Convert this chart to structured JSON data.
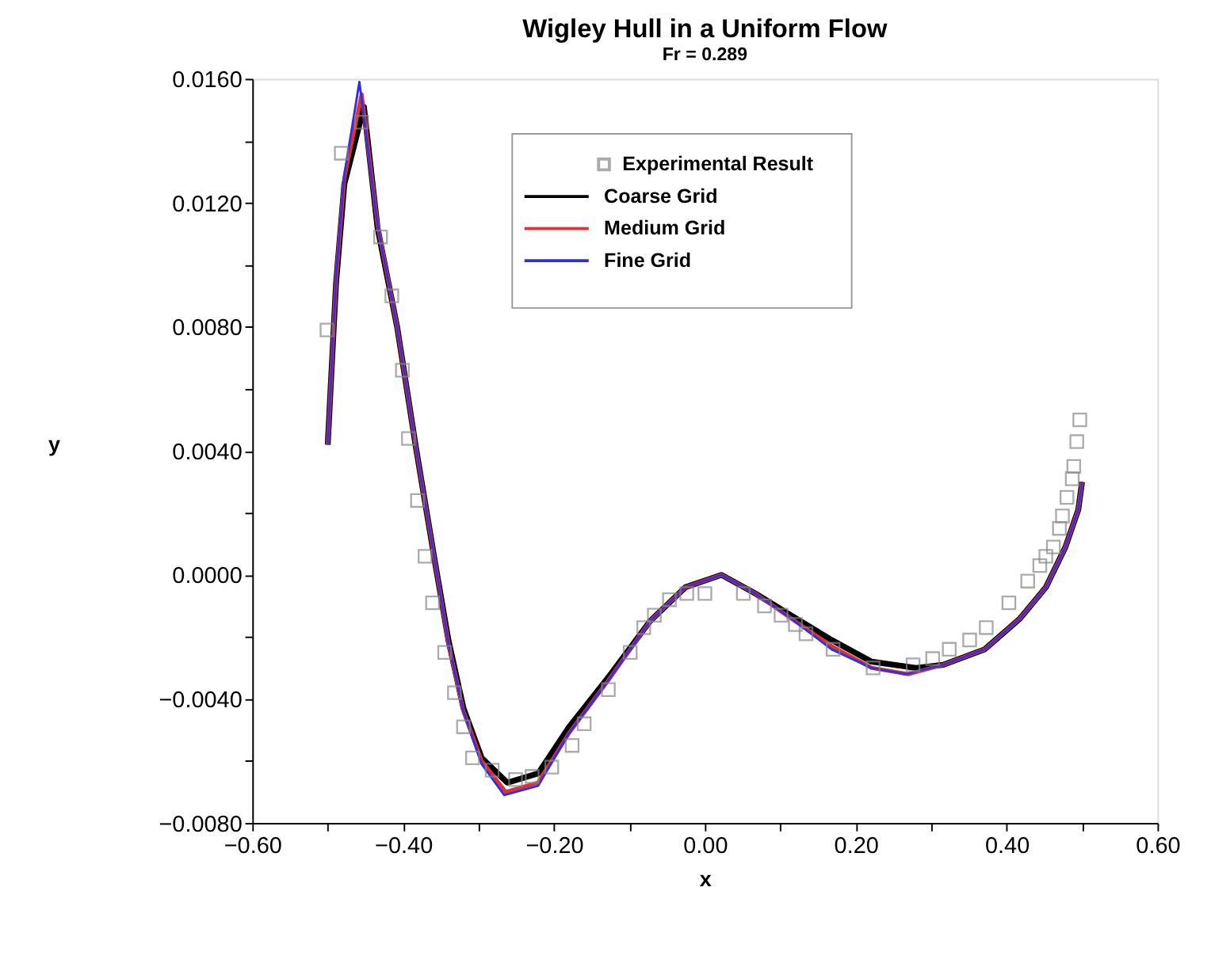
{
  "chart_data": {
    "type": "line",
    "title": "Wigley Hull in a Uniform Flow",
    "subtitle": "Fr = 0.289",
    "xlabel": "x",
    "ylabel": "y",
    "xlim": [
      -0.6,
      0.6
    ],
    "ylim": [
      -0.008,
      0.016
    ],
    "xticks": [
      {
        "value": -0.6,
        "label": "−0.60"
      },
      {
        "value": -0.5,
        "label": null
      },
      {
        "value": -0.4,
        "label": "−0.40"
      },
      {
        "value": -0.3,
        "label": null
      },
      {
        "value": -0.2,
        "label": "−0.20"
      },
      {
        "value": -0.1,
        "label": null
      },
      {
        "value": 0,
        "label": "0.00"
      },
      {
        "value": 0.1,
        "label": null
      },
      {
        "value": 0.2,
        "label": "0.20"
      },
      {
        "value": 0.3,
        "label": null
      },
      {
        "value": 0.4,
        "label": "0.40"
      },
      {
        "value": 0.5,
        "label": null
      },
      {
        "value": 0.6,
        "label": "0.60"
      }
    ],
    "yticks": [
      {
        "value": -0.008,
        "label": "−0.0080"
      },
      {
        "value": -0.006,
        "label": null
      },
      {
        "value": -0.004,
        "label": "−0.0040"
      },
      {
        "value": -0.002,
        "label": null
      },
      {
        "value": 0,
        "label": "0.0000"
      },
      {
        "value": 0.002,
        "label": null
      },
      {
        "value": 0.004,
        "label": "0.0040"
      },
      {
        "value": 0.006,
        "label": null
      },
      {
        "value": 0.008,
        "label": "0.0080"
      },
      {
        "value": 0.01,
        "label": null
      },
      {
        "value": 0.012,
        "label": "0.0120"
      },
      {
        "value": 0.014,
        "label": null
      },
      {
        "value": 0.016,
        "label": "0.0160"
      }
    ],
    "grid": false,
    "legend": "top",
    "series": [
      {
        "name": "Experimental Result",
        "type": "scatter",
        "marker": "square",
        "color": "#888888",
        "x": [
          -0.501,
          -0.482,
          -0.455,
          -0.43,
          -0.415,
          -0.401,
          -0.393,
          -0.381,
          -0.371,
          -0.361,
          -0.345,
          -0.332,
          -0.32,
          -0.308,
          -0.282,
          -0.251,
          -0.229,
          -0.203,
          -0.176,
          -0.16,
          -0.128,
          -0.099,
          -0.081,
          -0.067,
          -0.047,
          -0.024,
          0.0,
          0.051,
          0.079,
          0.101,
          0.12,
          0.134,
          0.17,
          0.223,
          0.276,
          0.302,
          0.324,
          0.351,
          0.373,
          0.403,
          0.428,
          0.444,
          0.452,
          0.462,
          0.47,
          0.474,
          0.48,
          0.487,
          0.489,
          0.493,
          0.497
        ],
        "values": [
          0.0079,
          0.0136,
          0.0146,
          0.0109,
          0.009,
          0.0066,
          0.0044,
          0.0024,
          0.0006,
          -0.0009,
          -0.0025,
          -0.0038,
          -0.0049,
          -0.0059,
          -0.0063,
          -0.0066,
          -0.0065,
          -0.0062,
          -0.0055,
          -0.0048,
          -0.0037,
          -0.0025,
          -0.0017,
          -0.0013,
          -0.0008,
          -0.0006,
          -0.0006,
          -0.0006,
          -0.001,
          -0.0013,
          -0.0016,
          -0.0019,
          -0.0024,
          -0.003,
          -0.0029,
          -0.0027,
          -0.0024,
          -0.0021,
          -0.0017,
          -0.0009,
          -0.0002,
          0.0003,
          0.0006,
          0.0009,
          0.0015,
          0.0019,
          0.0025,
          0.0031,
          0.0035,
          0.0043,
          0.005
        ]
      },
      {
        "name": "Coarse Grid",
        "color": "#000000",
        "x": [
          -0.5,
          -0.489,
          -0.478,
          -0.452,
          -0.434,
          -0.408,
          -0.383,
          -0.357,
          -0.34,
          -0.32,
          -0.296,
          -0.262,
          -0.221,
          -0.18,
          -0.128,
          -0.073,
          -0.026,
          0.022,
          0.067,
          0.114,
          0.168,
          0.221,
          0.28,
          0.316,
          0.371,
          0.418,
          0.452,
          0.478,
          0.495,
          0.5
        ],
        "values": [
          0.0042,
          0.0094,
          0.0126,
          0.0151,
          0.0112,
          0.008,
          0.0041,
          0.0003,
          -0.0021,
          -0.0043,
          -0.0059,
          -0.0067,
          -0.0064,
          -0.0049,
          -0.0033,
          -0.0015,
          -0.0004,
          0.0,
          -0.0006,
          -0.0013,
          -0.0021,
          -0.0028,
          -0.003,
          -0.0029,
          -0.0024,
          -0.0014,
          -0.0004,
          0.0009,
          0.0021,
          0.003
        ]
      },
      {
        "name": "Medium Grid",
        "color": "#e03030",
        "x": [
          -0.5,
          -0.489,
          -0.478,
          -0.455,
          -0.434,
          -0.408,
          -0.383,
          -0.357,
          -0.34,
          -0.32,
          -0.296,
          -0.264,
          -0.221,
          -0.18,
          -0.128,
          -0.073,
          -0.026,
          0.022,
          0.067,
          0.114,
          0.168,
          0.221,
          0.27,
          0.316,
          0.371,
          0.418,
          0.452,
          0.478,
          0.495,
          0.5
        ],
        "values": [
          0.0042,
          0.0095,
          0.0128,
          0.0155,
          0.0113,
          0.008,
          0.0041,
          0.0003,
          -0.0022,
          -0.0044,
          -0.006,
          -0.007,
          -0.0067,
          -0.0051,
          -0.0034,
          -0.0015,
          -0.0004,
          0.0,
          -0.0006,
          -0.0014,
          -0.0023,
          -0.003,
          -0.0032,
          -0.0029,
          -0.0024,
          -0.0014,
          -0.0004,
          0.0009,
          0.0021,
          0.003
        ]
      },
      {
        "name": "Fine Grid",
        "color": "#3030e0",
        "x": [
          -0.5,
          -0.489,
          -0.478,
          -0.458,
          -0.434,
          -0.408,
          -0.383,
          -0.357,
          -0.34,
          -0.32,
          -0.296,
          -0.266,
          -0.221,
          -0.18,
          -0.128,
          -0.073,
          -0.026,
          0.022,
          0.067,
          0.114,
          0.168,
          0.221,
          0.266,
          0.316,
          0.371,
          0.418,
          0.452,
          0.478,
          0.495,
          0.5
        ],
        "values": [
          0.0042,
          0.0096,
          0.0129,
          0.0159,
          0.0113,
          0.008,
          0.0041,
          0.0003,
          -0.0022,
          -0.0044,
          -0.0061,
          -0.0071,
          -0.0068,
          -0.0051,
          -0.0034,
          -0.0015,
          -0.0004,
          0.0,
          -0.0006,
          -0.0014,
          -0.0024,
          -0.003,
          -0.0032,
          -0.0029,
          -0.0024,
          -0.0014,
          -0.0004,
          0.0009,
          0.0021,
          0.003
        ]
      }
    ]
  }
}
